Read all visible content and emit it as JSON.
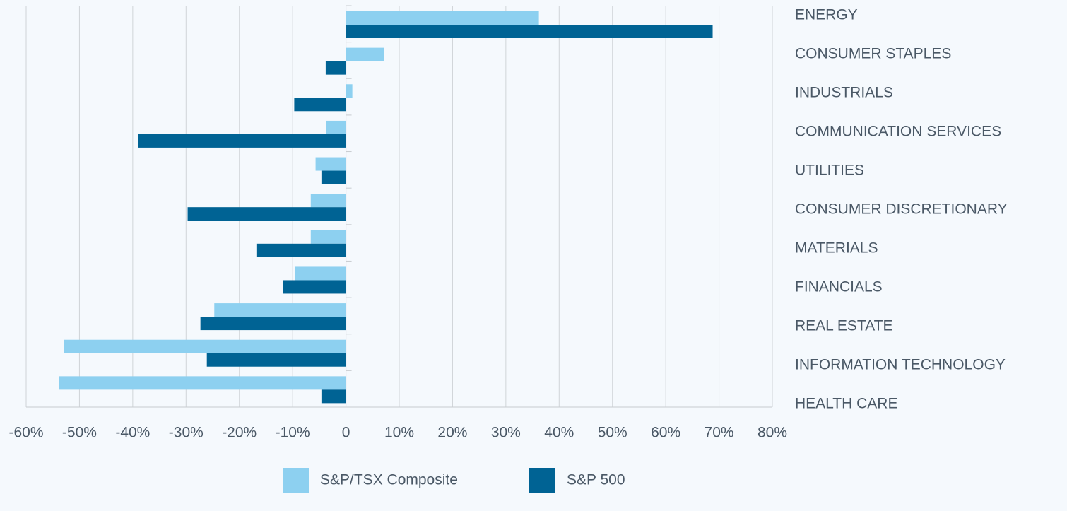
{
  "chart_data": {
    "type": "barh",
    "categories": [
      "ENERGY",
      "CONSUMER STAPLES",
      "INDUSTRIALS",
      "COMMUNICATION SERVICES",
      "UTILITIES",
      "CONSUMER DISCRETIONARY",
      "MATERIALS",
      "FINANCIALS",
      "REAL ESTATE",
      "INFORMATION TECHNOLOGY",
      "HEALTH CARE"
    ],
    "series": [
      {
        "name": "S&P/TSX Composite",
        "color": "#8dd0f0",
        "values": [
          36.2,
          7.2,
          1.2,
          -3.7,
          -5.7,
          -6.6,
          -6.6,
          -9.5,
          -24.7,
          -52.9,
          -53.8
        ]
      },
      {
        "name": "S&P 500",
        "color": "#006394",
        "values": [
          68.8,
          -3.8,
          -9.7,
          -39.0,
          -4.6,
          -29.7,
          -16.8,
          -11.8,
          -27.3,
          -26.1,
          -4.6
        ]
      }
    ],
    "xlim": [
      -60,
      80
    ],
    "xticks": [
      {
        "value": -60,
        "label": "-60%"
      },
      {
        "value": -50,
        "label": "-50%"
      },
      {
        "value": -40,
        "label": "-40%"
      },
      {
        "value": -30,
        "label": "-30%"
      },
      {
        "value": -20,
        "label": "-20%"
      },
      {
        "value": -10,
        "label": "-10%"
      },
      0,
      {
        "value": 10,
        "label": "10%"
      },
      {
        "value": 20,
        "label": "20%"
      },
      {
        "value": 30,
        "label": "30%"
      },
      {
        "value": 40,
        "label": "40%"
      },
      {
        "value": 50,
        "label": "50%"
      },
      {
        "value": 60,
        "label": "60%"
      },
      {
        "value": 70,
        "label": "70%"
      },
      {
        "value": 80,
        "label": "80%"
      }
    ],
    "grid": true,
    "legend": "bottom"
  }
}
